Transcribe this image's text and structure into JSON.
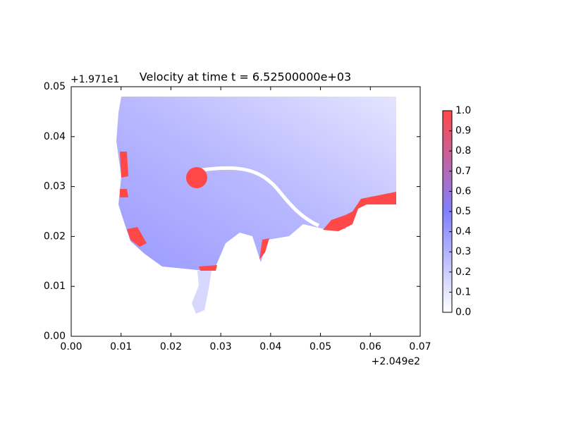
{
  "chart_data": {
    "type": "heatmap",
    "title": "Velocity at time t = 6.52500000e+03",
    "x_offset_label": "+2.049e2",
    "y_offset_label": "+1.971e1",
    "xlim": [
      0,
      0.07
    ],
    "ylim": [
      0,
      0.05
    ],
    "xticks": [
      {
        "value": 0,
        "label": "0.00"
      },
      0.01,
      0.02,
      0.03,
      0.04,
      0.05,
      0.06,
      0.07
    ],
    "yticks": [
      {
        "value": 0,
        "label": "0.00"
      },
      0.01,
      0.02,
      0.03,
      0.04,
      0.05
    ],
    "colorbar": {
      "lim": [
        0,
        1
      ],
      "ticks": [
        {
          "value": 0,
          "label": "0.0"
        },
        0.1,
        0.2,
        0.3,
        0.4,
        0.5,
        0.6,
        0.7,
        0.8,
        0.9,
        {
          "value": 1,
          "label": "1.0"
        }
      ],
      "colors": [
        "#ffffff",
        "#8080ff",
        "#ff4848"
      ]
    },
    "grid": false
  }
}
